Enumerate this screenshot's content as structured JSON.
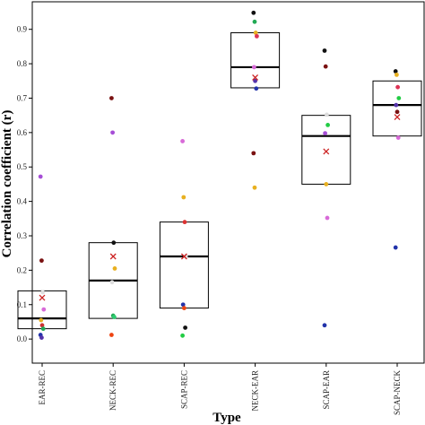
{
  "chart_data": {
    "type": "box-scatter",
    "xlabel": "Type",
    "ylabel": "Correlation coefficient (r)",
    "categories": [
      "EAR-REC",
      "NECK-REC",
      "SCAP-REC",
      "NECK-EAR",
      "SCAP-EAR",
      "SCAP-NECK"
    ],
    "ylim": [
      -0.07,
      0.98
    ],
    "yticks": [
      "0.0",
      "0.1",
      "0.2",
      "0.3",
      "0.4",
      "0.5",
      "0.6",
      "0.7",
      "0.8",
      "0.9"
    ],
    "grid": false,
    "mean_marker": "x",
    "mean_color": "#cc2222",
    "boxes": [
      {
        "q1": 0.03,
        "median": 0.06,
        "q3": 0.14
      },
      {
        "q1": 0.06,
        "median": 0.17,
        "q3": 0.28
      },
      {
        "q1": 0.09,
        "median": 0.24,
        "q3": 0.34
      },
      {
        "q1": 0.73,
        "median": 0.79,
        "q3": 0.89
      },
      {
        "q1": 0.45,
        "median": 0.59,
        "q3": 0.65
      },
      {
        "q1": 0.59,
        "median": 0.68,
        "q3": 0.75
      }
    ],
    "means": [
      0.12,
      0.24,
      0.24,
      0.76,
      0.545,
      0.645
    ],
    "points": [
      [
        {
          "y": 0.472,
          "color": "#a64dd6"
        },
        {
          "y": 0.228,
          "color": "#7a1212"
        },
        {
          "y": 0.136,
          "color": "#dddddd"
        },
        {
          "y": 0.086,
          "color": "#d86ad8"
        },
        {
          "y": 0.055,
          "color": "#e8b020"
        },
        {
          "y": 0.04,
          "color": "#cc3333"
        },
        {
          "y": 0.03,
          "color": "#22aa55"
        },
        {
          "y": 0.012,
          "color": "#2233aa"
        },
        {
          "y": 0.004,
          "color": "#5533aa"
        }
      ],
      [
        {
          "y": 0.7,
          "color": "#7a1212"
        },
        {
          "y": 0.6,
          "color": "#a64dd6"
        },
        {
          "y": 0.28,
          "color": "#111111"
        },
        {
          "y": 0.205,
          "color": "#e8b020"
        },
        {
          "y": 0.165,
          "color": "#dddddd"
        },
        {
          "y": 0.068,
          "color": "#22aa55"
        },
        {
          "y": 0.064,
          "color": "#2ecc71"
        },
        {
          "y": 0.012,
          "color": "#ee4411"
        }
      ],
      [
        {
          "y": 0.575,
          "color": "#d86ad8"
        },
        {
          "y": 0.412,
          "color": "#e8b020"
        },
        {
          "y": 0.34,
          "color": "#dd3333"
        },
        {
          "y": 0.24,
          "color": "#dddddd"
        },
        {
          "y": 0.1,
          "color": "#2233aa"
        },
        {
          "y": 0.09,
          "color": "#ee4411"
        },
        {
          "y": 0.033,
          "color": "#111111"
        },
        {
          "y": 0.01,
          "color": "#22cc44"
        }
      ],
      [
        {
          "y": 0.948,
          "color": "#111111"
        },
        {
          "y": 0.922,
          "color": "#22aa55"
        },
        {
          "y": 0.89,
          "color": "#e8b020"
        },
        {
          "y": 0.88,
          "color": "#dd3355"
        },
        {
          "y": 0.79,
          "color": "#d86ad8"
        },
        {
          "y": 0.75,
          "color": "#5533aa"
        },
        {
          "y": 0.728,
          "color": "#2233aa"
        },
        {
          "y": 0.54,
          "color": "#7a1212"
        },
        {
          "y": 0.44,
          "color": "#e8b020"
        }
      ],
      [
        {
          "y": 0.838,
          "color": "#111111"
        },
        {
          "y": 0.792,
          "color": "#7a1212"
        },
        {
          "y": 0.652,
          "color": "#dddddd"
        },
        {
          "y": 0.622,
          "color": "#22cc44"
        },
        {
          "y": 0.598,
          "color": "#a64dd6"
        },
        {
          "y": 0.45,
          "color": "#e8b020"
        },
        {
          "y": 0.352,
          "color": "#d86ad8"
        },
        {
          "y": 0.04,
          "color": "#2233aa"
        }
      ],
      [
        {
          "y": 0.778,
          "color": "#111111"
        },
        {
          "y": 0.768,
          "color": "#e8b020"
        },
        {
          "y": 0.732,
          "color": "#dd3355"
        },
        {
          "y": 0.7,
          "color": "#22cc44"
        },
        {
          "y": 0.68,
          "color": "#5533aa"
        },
        {
          "y": 0.66,
          "color": "#7a1212"
        },
        {
          "y": 0.585,
          "color": "#d86ad8"
        },
        {
          "y": 0.266,
          "color": "#2233aa"
        }
      ]
    ]
  }
}
